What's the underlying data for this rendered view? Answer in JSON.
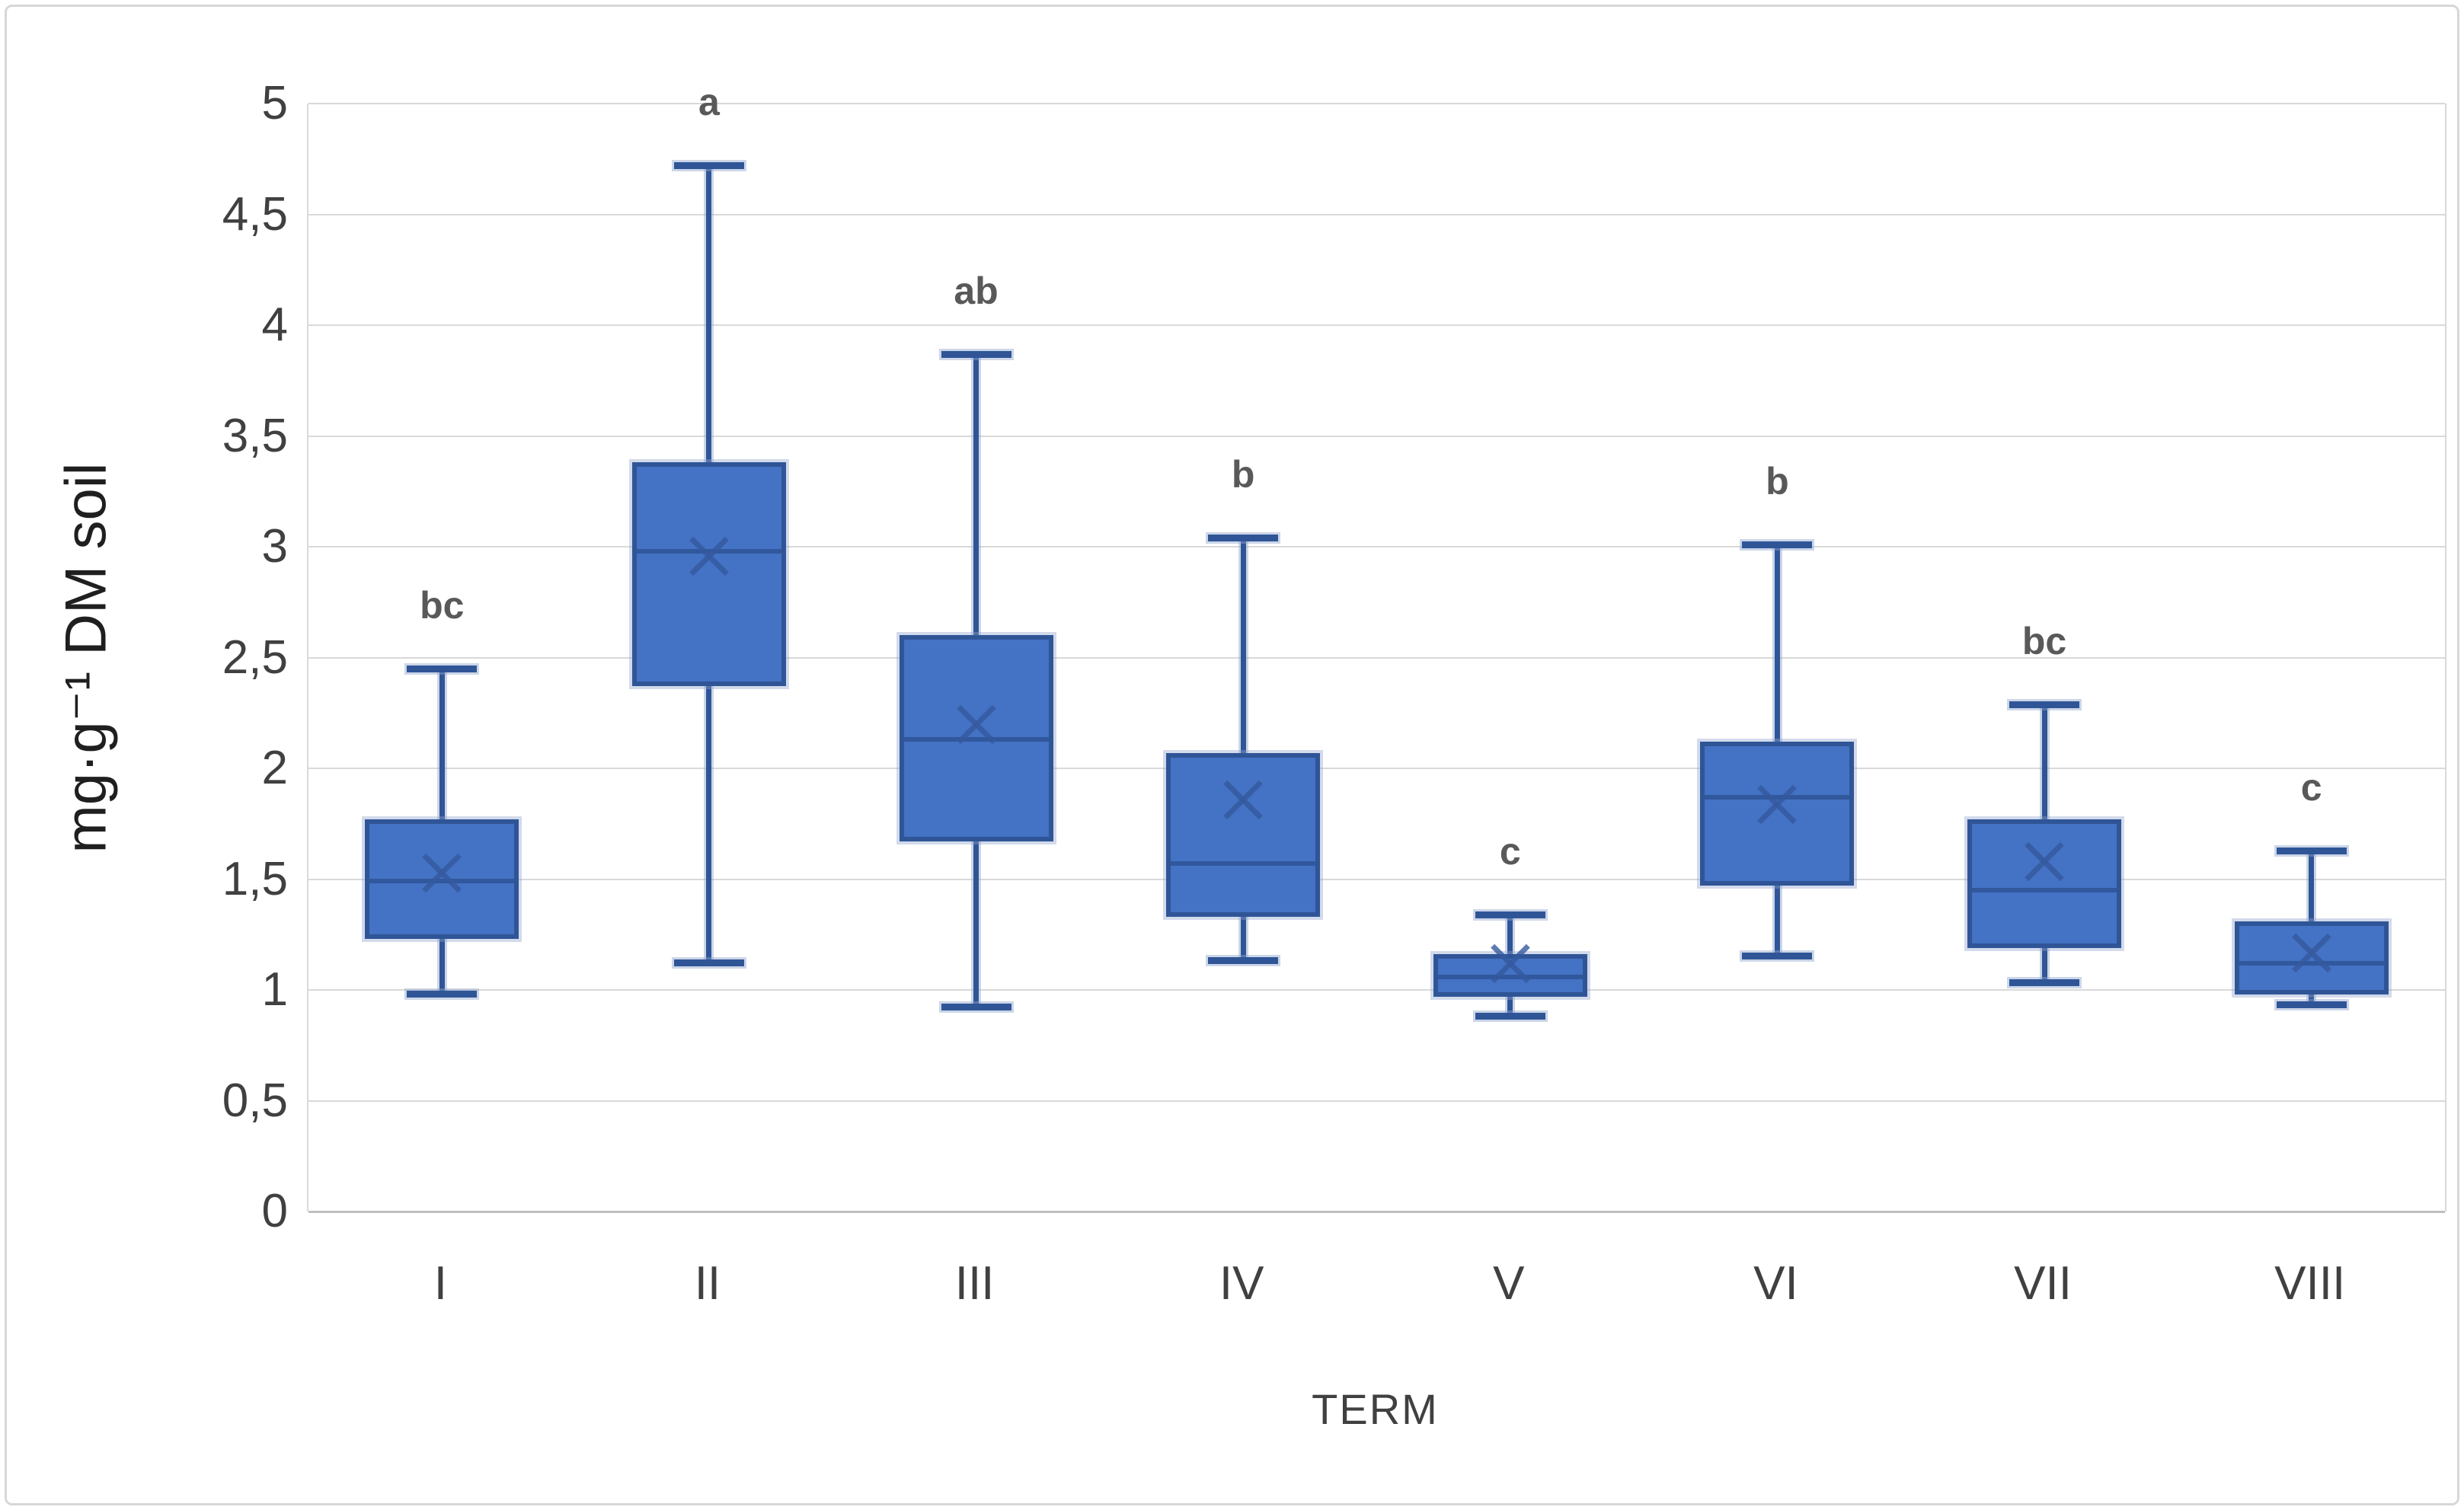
{
  "chart_data": {
    "type": "box",
    "title": "",
    "xlabel": "TERM",
    "ylabel": "mg·g⁻¹ DM soil",
    "ylim": [
      0,
      5
    ],
    "ytick_step": 0.5,
    "ytick_labels": [
      "0",
      "0,5",
      "1",
      "1,5",
      "2",
      "2,5",
      "3",
      "3,5",
      "4",
      "4,5",
      "5"
    ],
    "grid": "horizontal",
    "legend": "none",
    "categories": [
      "I",
      "II",
      "III",
      "IV",
      "V",
      "VI",
      "VII",
      "VIII"
    ],
    "boxes": [
      {
        "category": "I",
        "whisker_low": 0.98,
        "q1": 1.23,
        "median": 1.49,
        "mean": 1.53,
        "q3": 1.77,
        "whisker_high": 2.45,
        "sig_letter": "bc"
      },
      {
        "category": "II",
        "whisker_low": 1.12,
        "q1": 2.37,
        "median": 2.98,
        "mean": 2.96,
        "q3": 3.38,
        "whisker_high": 4.72,
        "sig_letter": "a"
      },
      {
        "category": "III",
        "whisker_low": 0.92,
        "q1": 1.67,
        "median": 2.13,
        "mean": 2.2,
        "q3": 2.6,
        "whisker_high": 3.87,
        "sig_letter": "ab"
      },
      {
        "category": "IV",
        "whisker_low": 1.13,
        "q1": 1.33,
        "median": 1.57,
        "mean": 1.86,
        "q3": 2.07,
        "whisker_high": 3.04,
        "sig_letter": "b"
      },
      {
        "category": "V",
        "whisker_low": 0.88,
        "q1": 0.97,
        "median": 1.06,
        "mean": 1.12,
        "q3": 1.16,
        "whisker_high": 1.34,
        "sig_letter": "c"
      },
      {
        "category": "VI",
        "whisker_low": 1.15,
        "q1": 1.47,
        "median": 1.87,
        "mean": 1.84,
        "q3": 2.12,
        "whisker_high": 3.01,
        "sig_letter": "b"
      },
      {
        "category": "VII",
        "whisker_low": 1.03,
        "q1": 1.19,
        "median": 1.45,
        "mean": 1.58,
        "q3": 1.77,
        "whisker_high": 2.29,
        "sig_letter": "bc"
      },
      {
        "category": "VIII",
        "whisker_low": 0.93,
        "q1": 0.98,
        "median": 1.12,
        "mean": 1.17,
        "q3": 1.31,
        "whisker_high": 1.63,
        "sig_letter": "c"
      }
    ]
  },
  "colors": {
    "box_fill": "#4472C4",
    "box_border": "#2F5597",
    "whisker": "#2F5597",
    "whisker_halo": "#8FA3CC",
    "median_line": "#2E5496",
    "mean_marker": "#35599E",
    "gridline": "#D9D9D9",
    "axis_line": "#BFBFBF",
    "tick_text": "#404040",
    "sig_letter_text": "#595959",
    "axis_title_text": "#1F1F1F",
    "frame_border": "#D7D7D7",
    "background": "#FFFFFF"
  }
}
